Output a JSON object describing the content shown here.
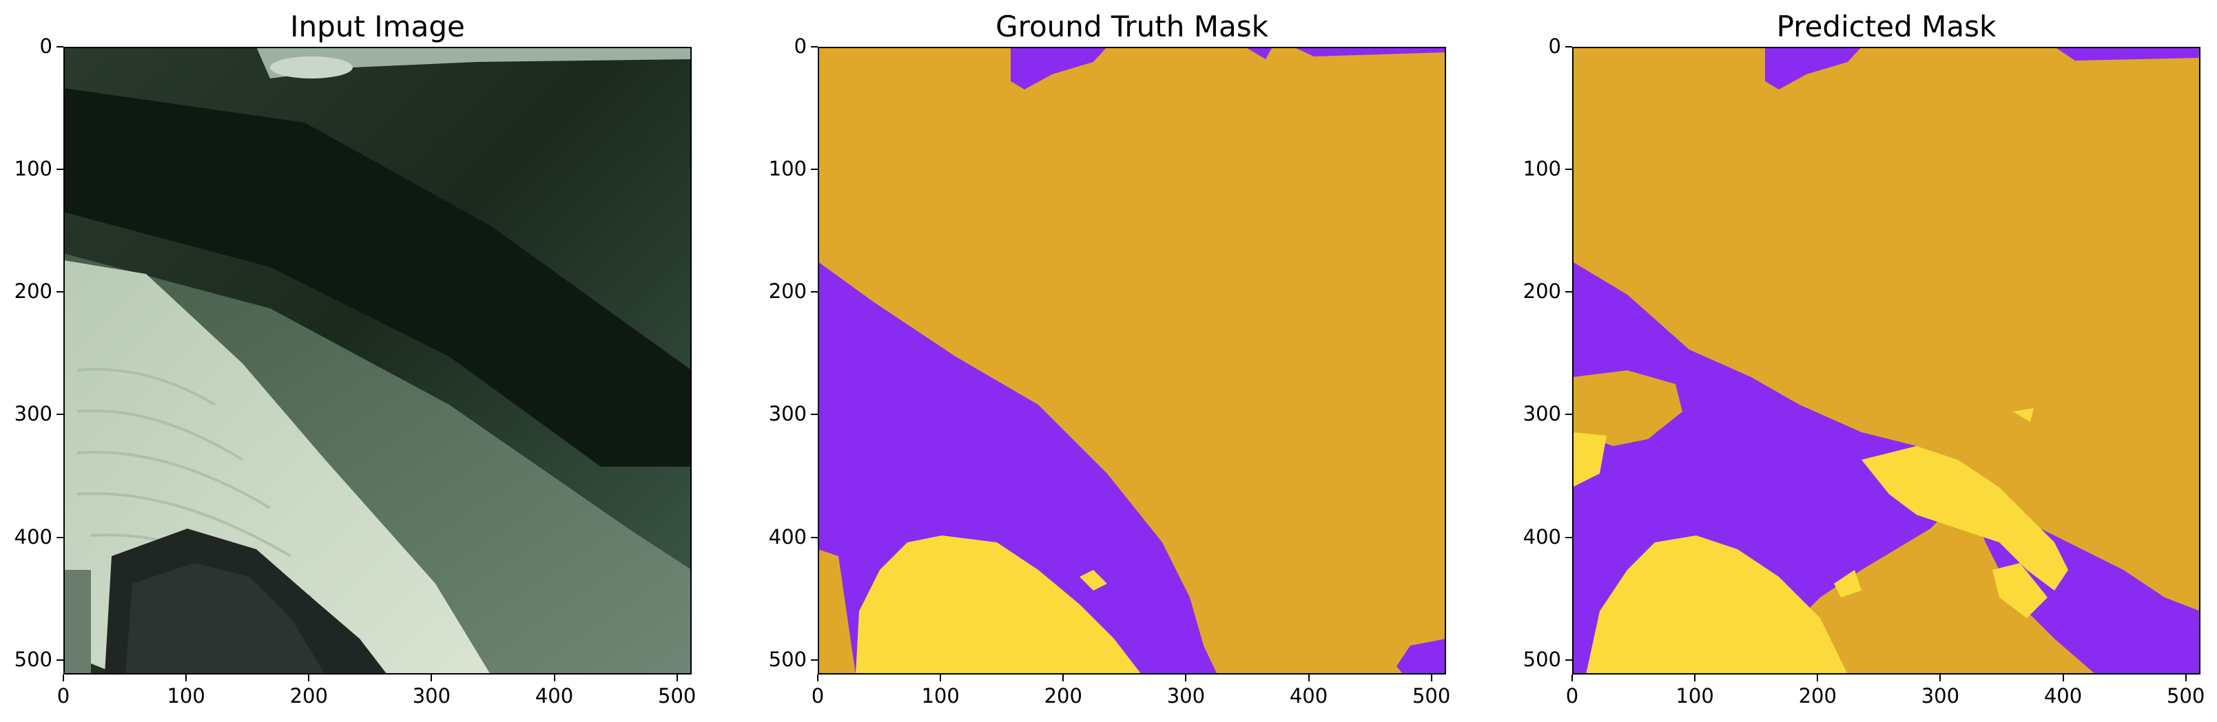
{
  "panels": [
    {
      "id": "input",
      "title": "Input Image"
    },
    {
      "id": "gt",
      "title": "Ground Truth Mask"
    },
    {
      "id": "pred",
      "title": "Predicted Mask"
    }
  ],
  "axes": {
    "x_ticks": [
      "0",
      "100",
      "200",
      "300",
      "400",
      "500"
    ],
    "y_ticks": [
      "0",
      "100",
      "200",
      "300",
      "400",
      "500"
    ],
    "xlim": [
      0,
      512
    ],
    "ylim": [
      512,
      0
    ]
  },
  "colors": {
    "class_orange": "#E0A82A",
    "class_purple": "#8A2BF2",
    "class_yellow": "#FBDB3B"
  }
}
